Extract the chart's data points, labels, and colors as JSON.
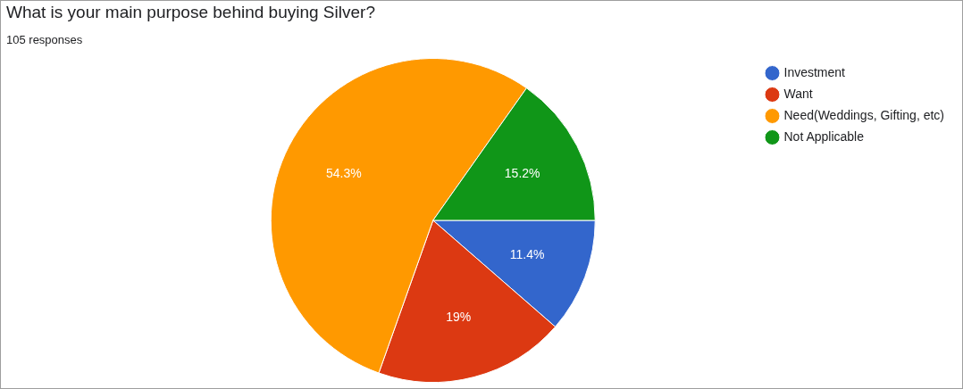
{
  "chart_data": {
    "type": "pie",
    "title": "What is your main purpose behind buying Silver?",
    "subtitle": "105 responses",
    "categories": [
      "Investment",
      "Want",
      "Need(Weddings, Gifting, etc)",
      "Not Applicable"
    ],
    "values": [
      11.4,
      19,
      54.3,
      15.2
    ],
    "value_labels": [
      "11.4%",
      "19%",
      "54.3%",
      "15.2%"
    ],
    "colors": [
      "#3366cc",
      "#dc3912",
      "#ff9900",
      "#109618"
    ],
    "legend": "right"
  }
}
